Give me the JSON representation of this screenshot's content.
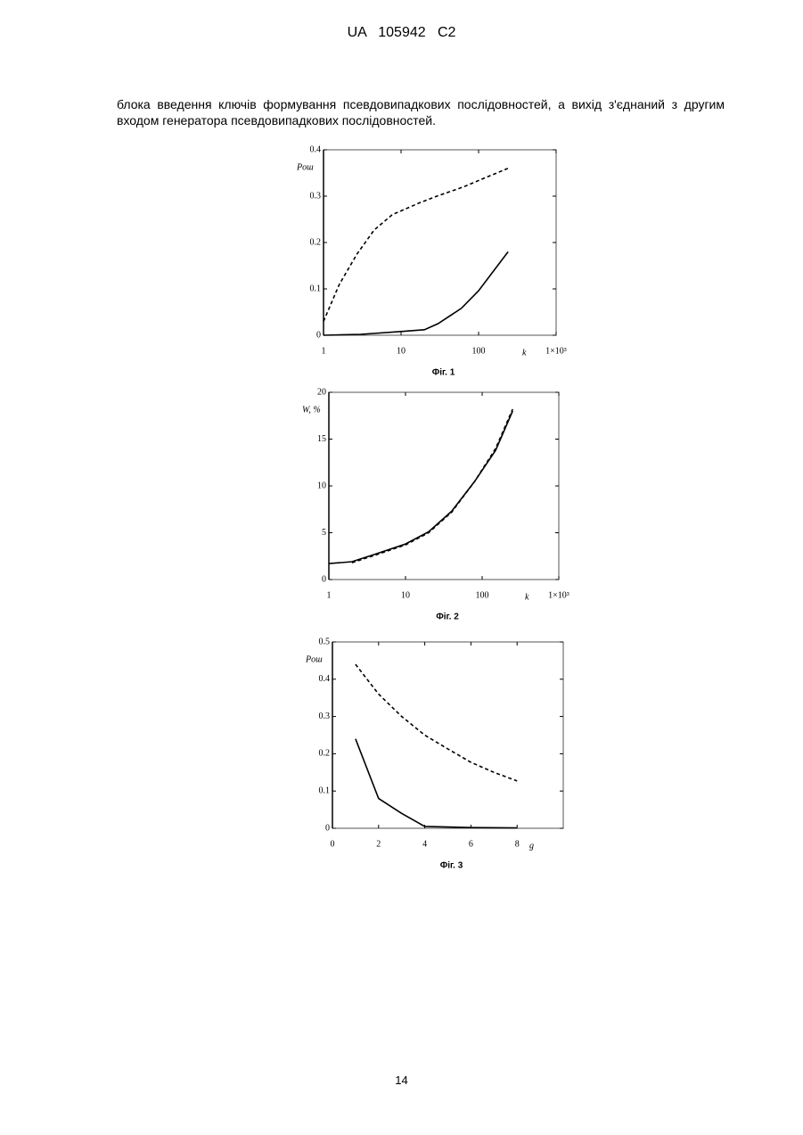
{
  "header": "UA   105942   C2",
  "paragraph": "блока введення ключів формування псевдовипадкових послідовностей, а вихід з'єднаний з другим входом генератора псевдовипадкових послідовностей.",
  "page_number": "14",
  "chart_data": [
    {
      "type": "line",
      "xscale": "log",
      "xlim": [
        1,
        1000
      ],
      "xticks": [
        1,
        10,
        100,
        {
          "value": 1000,
          "label": "1×10³"
        }
      ],
      "ylim": [
        0,
        0.4
      ],
      "yticks": [
        0,
        0.1,
        0.2,
        0.3,
        0.4
      ],
      "ylabel": "Pош",
      "xlabel": "k",
      "caption": "Фіг. 1",
      "series": [
        {
          "color": "#000000",
          "dash": true,
          "x": [
            1,
            1.6,
            2.7,
            4.5,
            7.7,
            17,
            29,
            64,
            123,
            240
          ],
          "values": [
            0.03,
            0.11,
            0.175,
            0.227,
            0.26,
            0.285,
            0.3,
            0.32,
            0.34,
            0.36
          ]
        },
        {
          "color": "#000000",
          "dash": false,
          "x": [
            1,
            3,
            10,
            20,
            30,
            60,
            100,
            240
          ],
          "values": [
            0,
            0.002,
            0.008,
            0.012,
            0.025,
            0.058,
            0.096,
            0.18
          ]
        }
      ]
    },
    {
      "type": "line",
      "xscale": "log",
      "xlim": [
        1,
        1000
      ],
      "xticks": [
        1,
        10,
        100,
        {
          "value": 1000,
          "label": "1×10³"
        }
      ],
      "ylim": [
        0,
        20
      ],
      "yticks": [
        0,
        5,
        10,
        15,
        20
      ],
      "ylabel": "W, %",
      "xlabel": "k",
      "caption": "Фіг. 2",
      "series": [
        {
          "color": "#000000",
          "dash": true,
          "x": [
            2,
            4,
            10,
            20,
            40,
            80,
            150,
            250
          ],
          "values": [
            1.8,
            2.6,
            3.7,
            5.0,
            7.2,
            10.5,
            14,
            18.2
          ]
        },
        {
          "color": "#000000",
          "dash": false,
          "x": [
            1,
            2,
            4,
            10,
            20,
            40,
            80,
            150,
            250
          ],
          "values": [
            1.7,
            1.9,
            2.7,
            3.8,
            5.1,
            7.3,
            10.5,
            13.8,
            18
          ]
        }
      ]
    },
    {
      "type": "line",
      "xscale": "linear",
      "xlim": [
        0,
        10
      ],
      "xticks": [
        0,
        2,
        4,
        6,
        8
      ],
      "ylim": [
        0,
        0.5
      ],
      "yticks": [
        0,
        0.1,
        0.2,
        0.3,
        0.4,
        0.5
      ],
      "ylabel": "Pош",
      "xlabel": "g",
      "caption": "Фіг. 3",
      "series": [
        {
          "color": "#000000",
          "dash": true,
          "x": [
            1,
            2,
            3,
            4,
            5,
            6,
            7,
            8
          ],
          "values": [
            0.44,
            0.36,
            0.3,
            0.25,
            0.213,
            0.177,
            0.15,
            0.127
          ]
        },
        {
          "color": "#000000",
          "dash": false,
          "x": [
            1,
            2,
            3,
            4,
            6,
            8
          ],
          "values": [
            0.24,
            0.08,
            0.04,
            0.005,
            0.002,
            0.001
          ]
        }
      ]
    }
  ]
}
